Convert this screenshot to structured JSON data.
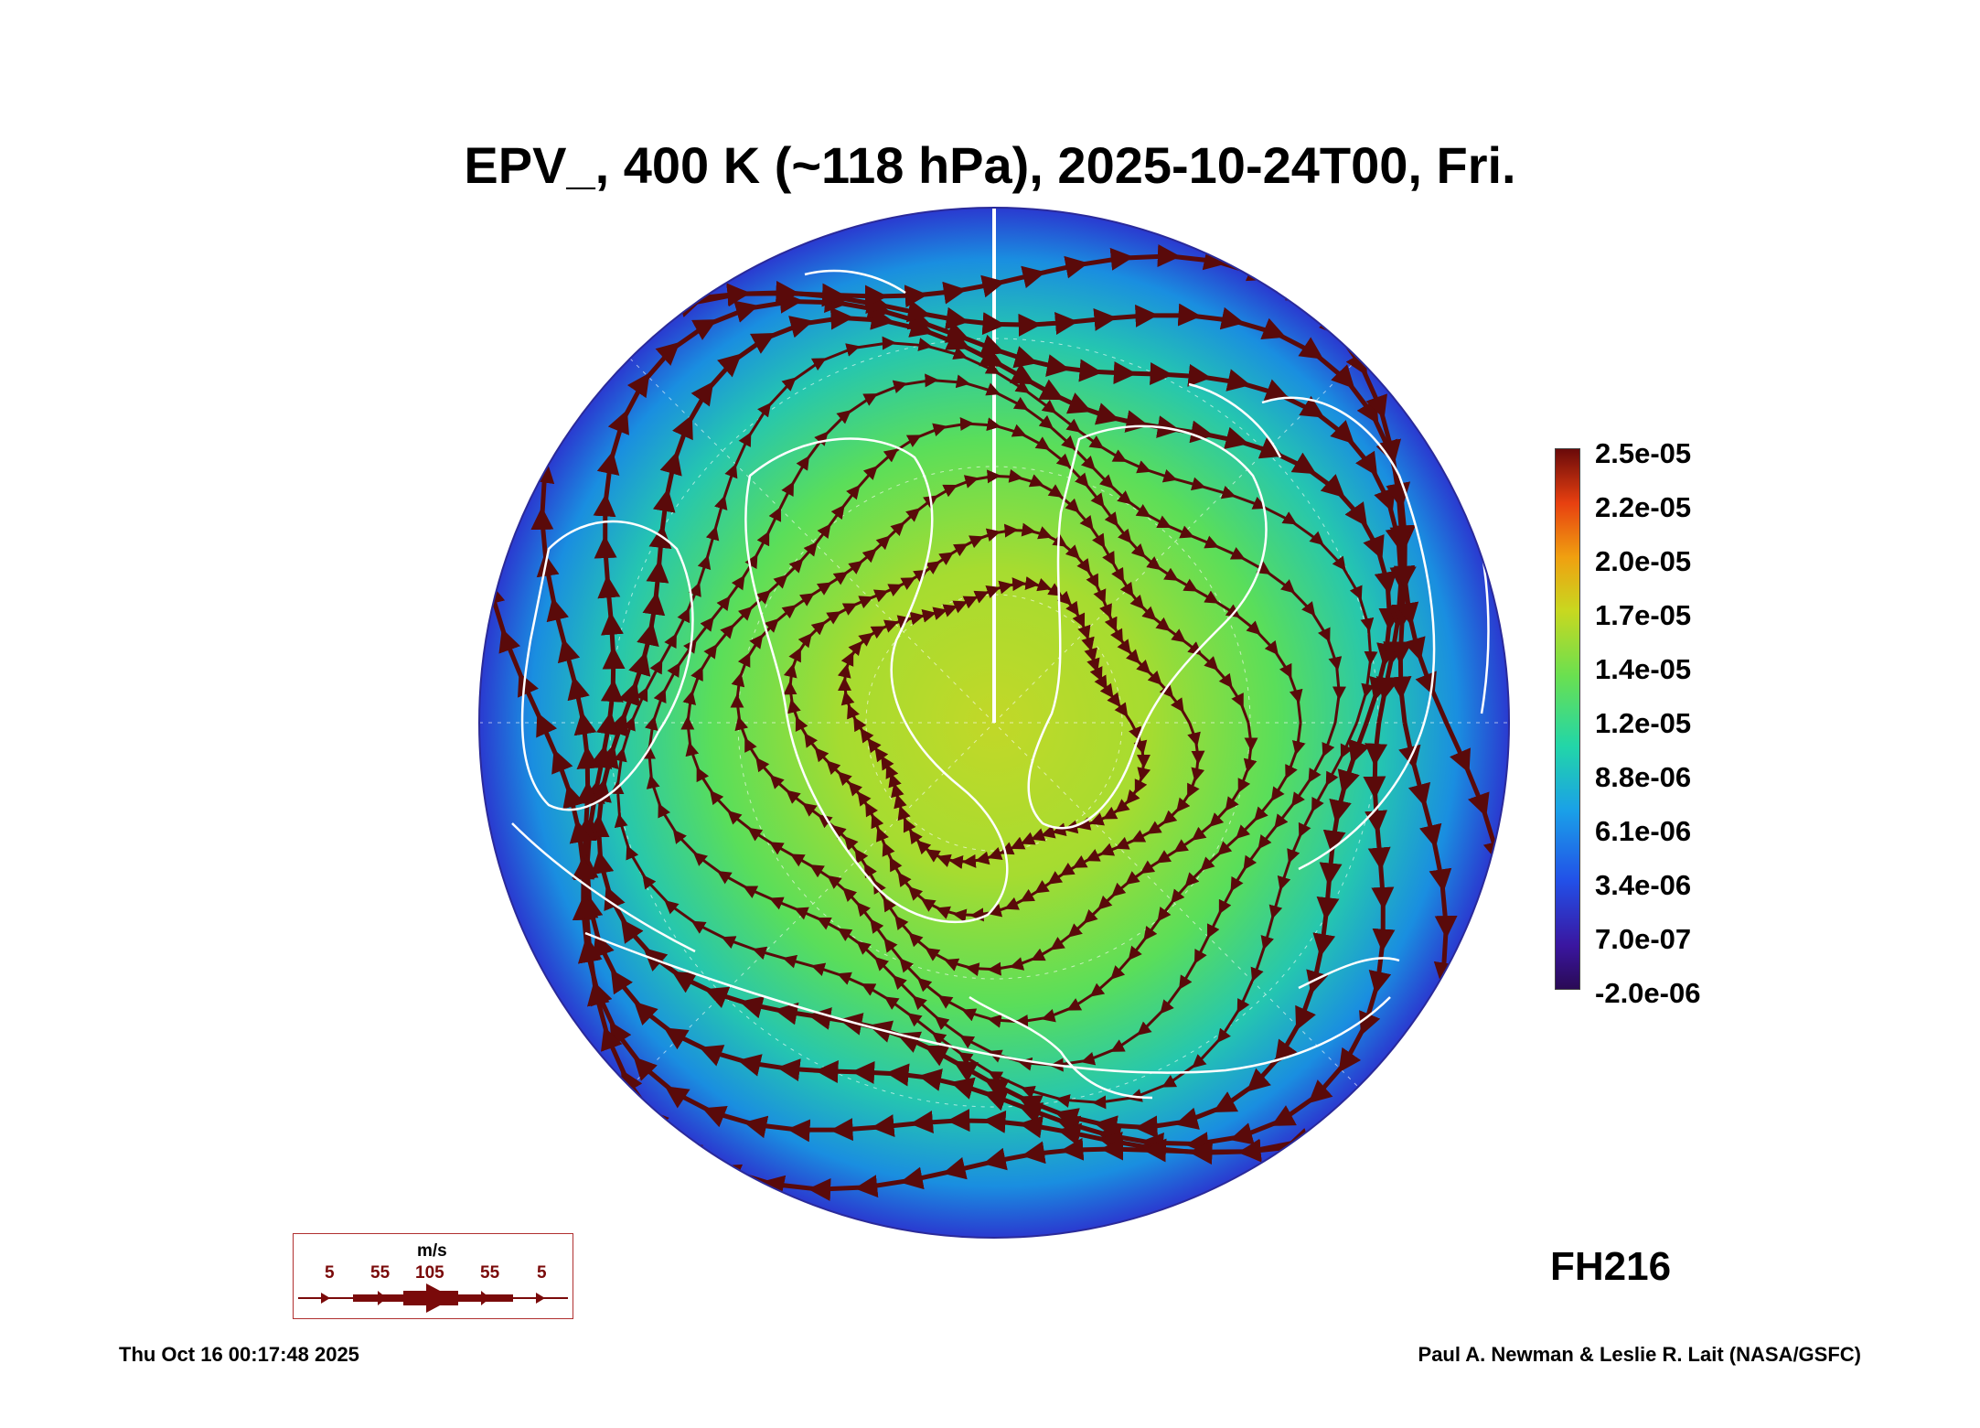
{
  "title": "EPV_, 400 K (~118 hPa), 2025-10-24T00, Fri.",
  "colorbar": {
    "ticks": [
      "2.5e-05",
      "2.2e-05",
      "2.0e-05",
      "1.7e-05",
      "1.4e-05",
      "1.2e-05",
      "8.8e-06",
      "6.1e-06",
      "3.4e-06",
      "7.0e-07",
      "-2.0e-06"
    ],
    "colors": [
      "#2a0a55",
      "#2250e8",
      "#1aa0e8",
      "#22d6a8",
      "#6ae050",
      "#c8d820",
      "#f0a010",
      "#e84010",
      "#6a0a0a"
    ]
  },
  "forecast_hour": "FH216",
  "wind_legend": {
    "unit": "m/s",
    "speeds": [
      "5",
      "55",
      "105",
      "55",
      "5"
    ]
  },
  "footer": {
    "timestamp": "Thu Oct 16 00:17:48 2025",
    "credit": "Paul A. Newman & Leslie R. Lait (NASA/GSFC)"
  },
  "map": {
    "projection": "north polar stereographic",
    "field_colors": {
      "ocean_edge": "#2a40d8",
      "mid": "#1fc0d0",
      "inner": "#5ade5a",
      "core": "#b8d82a"
    },
    "streamline_color": "#5a0a0a",
    "coastline_color": "#ffffff"
  }
}
